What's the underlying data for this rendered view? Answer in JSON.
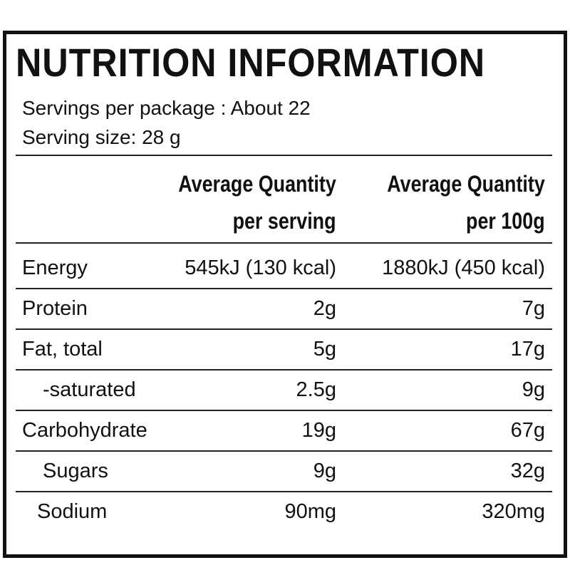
{
  "header": {
    "title": "NUTRITION INFORMATION",
    "servings_per_package": "Servings per package : About 22",
    "serving_size": "Serving size: 28 g"
  },
  "table": {
    "columns": [
      {
        "line1": "Average Quantity",
        "line2": "per serving"
      },
      {
        "line1": "Average Quantity",
        "line2": "per 100g"
      }
    ],
    "rows": [
      [
        "Energy",
        "545kJ (130 kcal)",
        "1880kJ (450 kcal)"
      ],
      [
        "Protein",
        "2g",
        "7g"
      ],
      [
        "Fat, total",
        "5g",
        "17g"
      ],
      [
        "-saturated",
        "2.5g",
        "9g"
      ],
      [
        "Carbohydrate",
        "19g",
        "67g"
      ],
      [
        "Sugars",
        "9g",
        "32g"
      ],
      [
        "Sodium",
        "90mg",
        "320mg"
      ]
    ]
  }
}
